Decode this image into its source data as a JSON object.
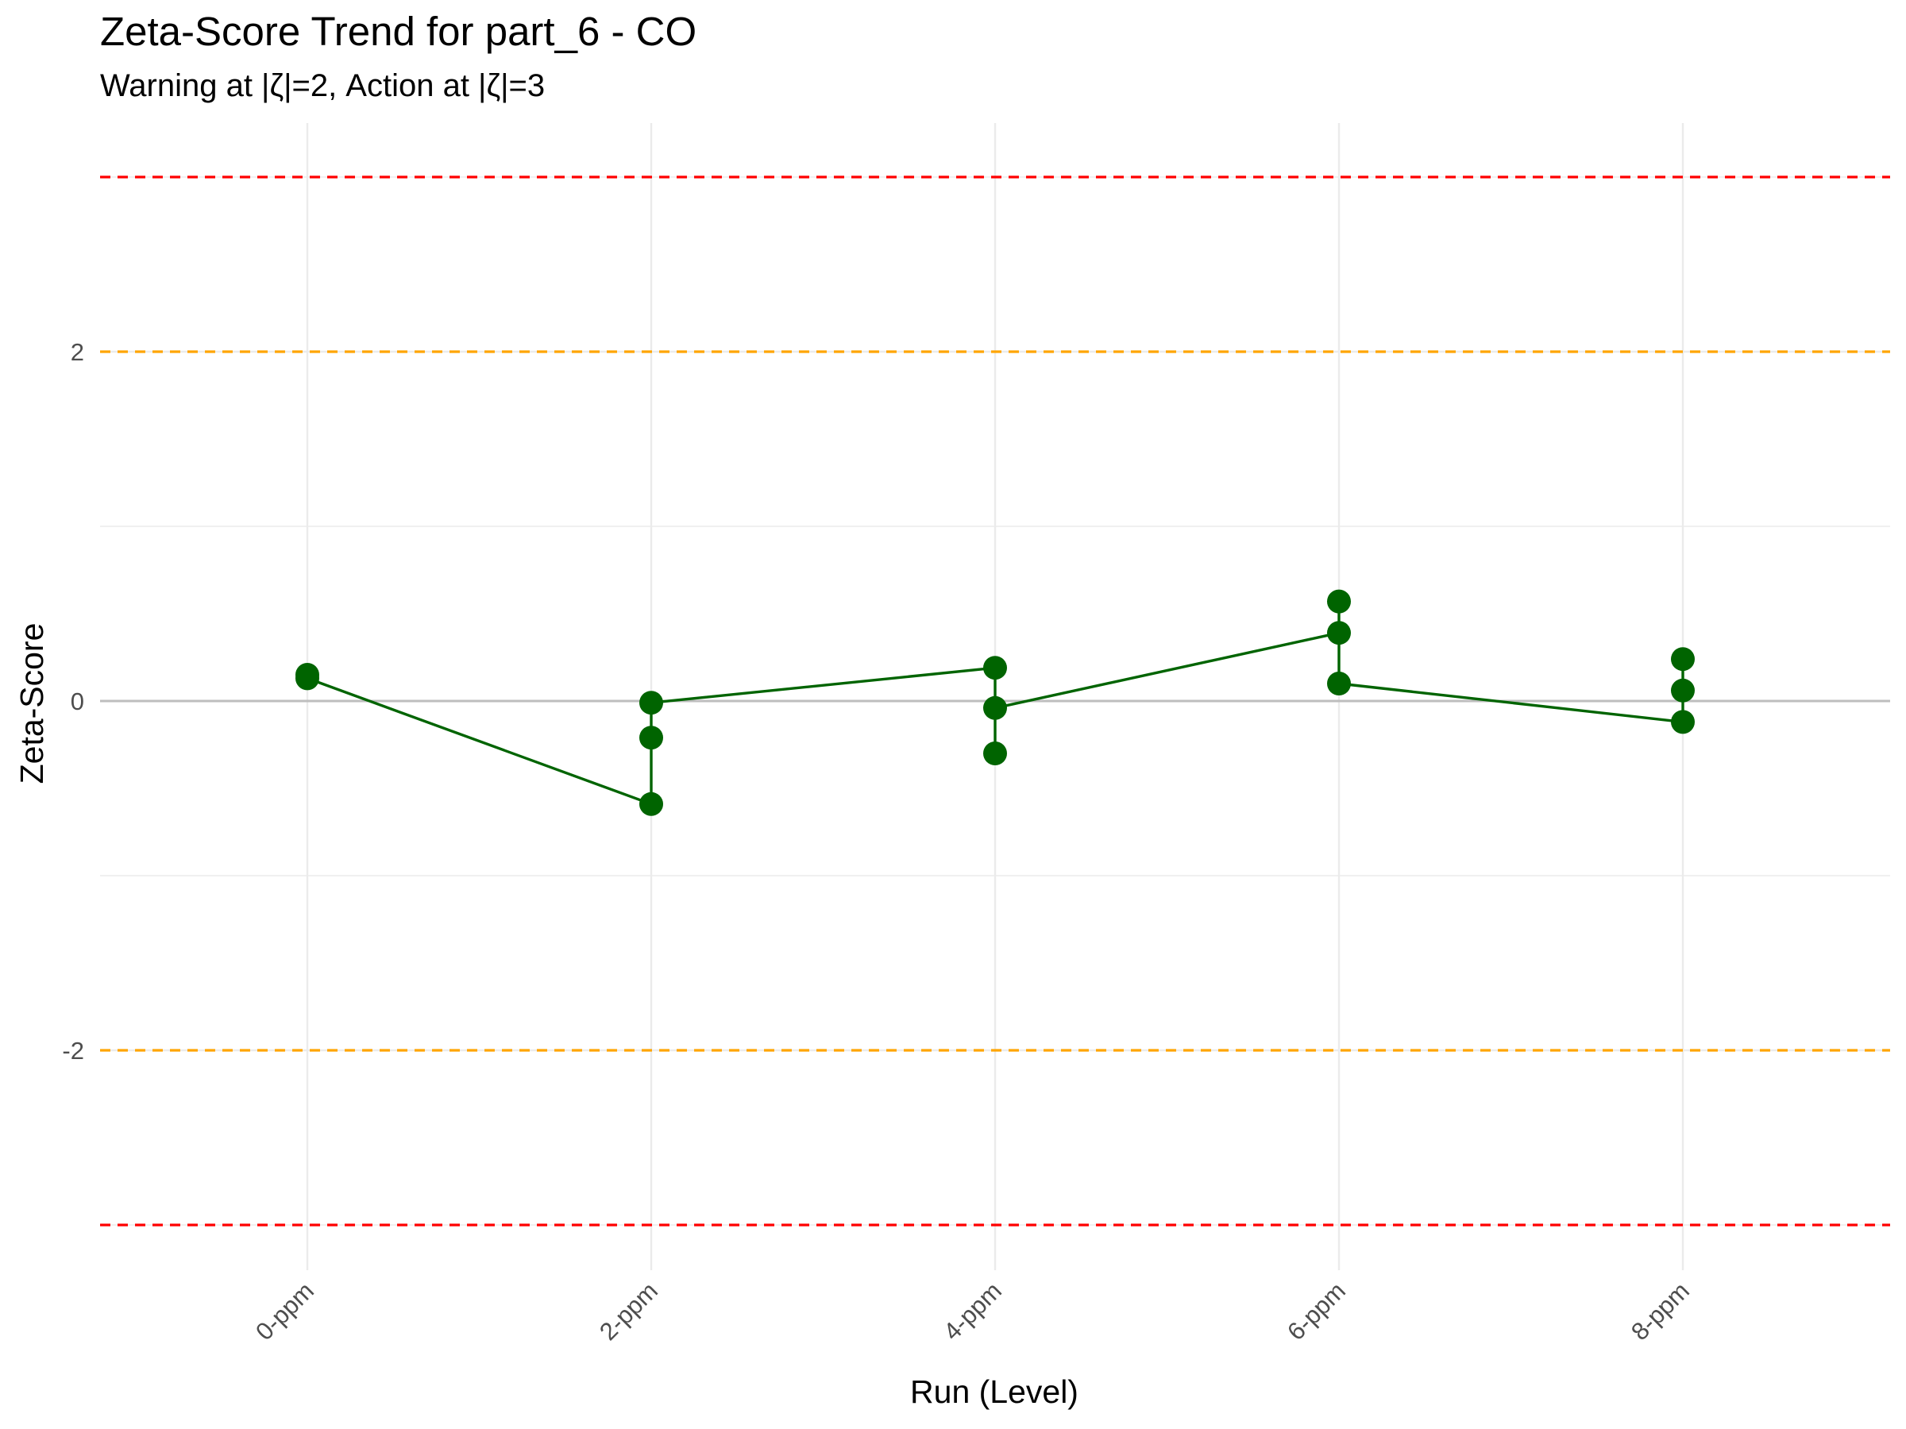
{
  "chart_data": {
    "type": "line",
    "title": "Zeta-Score Trend for part_6 - CO",
    "subtitle": "Warning at |ζ|=2, Action at |ζ|=3",
    "xlabel": "Run (Level)",
    "ylabel": "Zeta-Score",
    "categories": [
      "0-ppm",
      "2-ppm",
      "4-ppm",
      "6-ppm",
      "8-ppm"
    ],
    "y_ticks": [
      "-2",
      "0",
      "2"
    ],
    "ylim": [
      -3.3,
      3.3
    ],
    "grid": true,
    "reference_lines": [
      {
        "y": 3,
        "kind": "action",
        "color": "#ff0000"
      },
      {
        "y": -3,
        "kind": "action",
        "color": "#ff0000"
      },
      {
        "y": 2,
        "kind": "warning",
        "color": "#ffa500"
      },
      {
        "y": -2,
        "kind": "warning",
        "color": "#ffa500"
      },
      {
        "y": 0,
        "kind": "zero",
        "color": "#bebebe"
      }
    ],
    "points": [
      {
        "x": "0-ppm",
        "y": 0.15
      },
      {
        "x": "0-ppm",
        "y": 0.13
      },
      {
        "x": "2-ppm",
        "y": -0.01
      },
      {
        "x": "2-ppm",
        "y": -0.21
      },
      {
        "x": "2-ppm",
        "y": -0.59
      },
      {
        "x": "4-ppm",
        "y": 0.19
      },
      {
        "x": "4-ppm",
        "y": -0.04
      },
      {
        "x": "4-ppm",
        "y": -0.3
      },
      {
        "x": "6-ppm",
        "y": 0.57
      },
      {
        "x": "6-ppm",
        "y": 0.39
      },
      {
        "x": "6-ppm",
        "y": 0.1
      },
      {
        "x": "8-ppm",
        "y": 0.24
      },
      {
        "x": "8-ppm",
        "y": 0.06
      },
      {
        "x": "8-ppm",
        "y": -0.12
      }
    ],
    "line_path": [
      {
        "x": "0-ppm",
        "y": 0.15
      },
      {
        "x": "0-ppm",
        "y": 0.13
      },
      {
        "x": "2-ppm",
        "y": -0.59
      },
      {
        "x": "2-ppm",
        "y": -0.01
      },
      {
        "x": "4-ppm",
        "y": 0.19
      },
      {
        "x": "4-ppm",
        "y": -0.3
      },
      {
        "x": "4-ppm",
        "y": -0.04
      },
      {
        "x": "6-ppm",
        "y": 0.39
      },
      {
        "x": "6-ppm",
        "y": 0.57
      },
      {
        "x": "6-ppm",
        "y": 0.1
      },
      {
        "x": "8-ppm",
        "y": -0.12
      },
      {
        "x": "8-ppm",
        "y": 0.24
      }
    ],
    "series_color": "#006400"
  }
}
